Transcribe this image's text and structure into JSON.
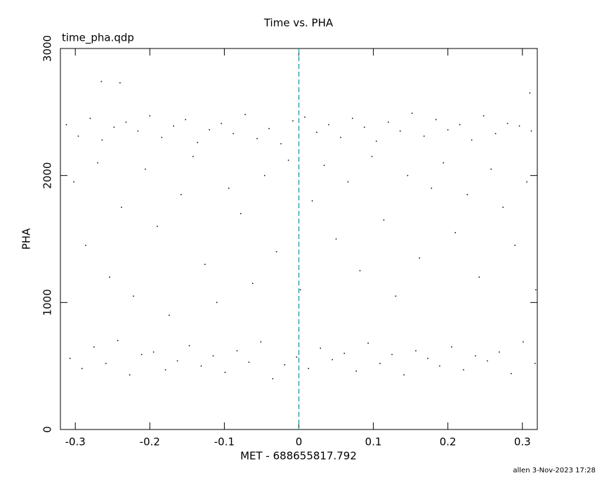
{
  "chart_data": {
    "type": "scatter",
    "title": "Time vs. PHA",
    "subtitle": "time_pha.qdp",
    "x_label": "MET - 688655817.792",
    "y_label": "PHA",
    "footer": "allen  3-Nov-2023 17:28",
    "color": "#000000",
    "vline": 0,
    "vline_color": "#1a9aa0",
    "xlim": [
      -0.32,
      0.32
    ],
    "ylim": [
      0,
      3000
    ],
    "xticks": [
      -0.3,
      -0.2,
      -0.1,
      0,
      0.1,
      0.2,
      0.3
    ],
    "yticks": [
      0,
      1000,
      2000,
      3000
    ],
    "x": [
      -0.312,
      -0.296,
      -0.28,
      -0.264,
      -0.248,
      -0.232,
      -0.216,
      -0.2,
      -0.184,
      -0.168,
      -0.152,
      -0.136,
      -0.12,
      -0.104,
      -0.088,
      -0.072,
      -0.056,
      -0.04,
      -0.024,
      -0.008,
      0.008,
      0.024,
      0.04,
      0.056,
      0.072,
      0.088,
      0.104,
      0.12,
      0.136,
      0.152,
      0.168,
      0.184,
      0.2,
      0.216,
      0.232,
      0.248,
      0.264,
      0.28,
      0.296,
      0.312,
      -0.307,
      -0.291,
      -0.275,
      -0.259,
      -0.243,
      -0.227,
      -0.211,
      -0.195,
      -0.179,
      -0.163,
      -0.147,
      -0.131,
      -0.115,
      -0.099,
      -0.083,
      -0.067,
      -0.051,
      -0.035,
      -0.019,
      -0.003,
      0.013,
      0.029,
      0.045,
      0.061,
      0.077,
      0.093,
      0.109,
      0.125,
      0.141,
      0.157,
      0.173,
      0.189,
      0.205,
      0.221,
      0.237,
      0.253,
      0.269,
      0.285,
      0.301,
      0.317,
      -0.302,
      -0.286,
      -0.27,
      -0.254,
      -0.238,
      -0.222,
      -0.206,
      -0.19,
      -0.174,
      -0.158,
      -0.142,
      -0.126,
      -0.11,
      -0.094,
      -0.078,
      -0.062,
      -0.046,
      -0.03,
      -0.014,
      0.002,
      0.018,
      0.034,
      0.05,
      0.066,
      0.082,
      0.098,
      0.114,
      0.13,
      0.146,
      0.162,
      0.178,
      0.194,
      0.21,
      0.226,
      0.242,
      0.258,
      0.274,
      0.29,
      0.306,
      0.318,
      -0.265,
      -0.24,
      0.31
    ],
    "y": [
      2400,
      2310,
      2450,
      2280,
      2380,
      2420,
      2350,
      2470,
      2300,
      2390,
      2440,
      2260,
      2360,
      2410,
      2330,
      2480,
      2290,
      2370,
      2250,
      2430,
      2460,
      2340,
      2400,
      2300,
      2450,
      2380,
      2270,
      2420,
      2350,
      2490,
      2310,
      2440,
      2360,
      2400,
      2280,
      2470,
      2330,
      2410,
      2390,
      2350,
      560,
      480,
      650,
      520,
      700,
      430,
      590,
      610,
      470,
      540,
      660,
      500,
      580,
      450,
      620,
      530,
      690,
      400,
      510,
      570,
      480,
      640,
      550,
      600,
      460,
      680,
      520,
      590,
      430,
      620,
      560,
      500,
      650,
      470,
      580,
      540,
      610,
      440,
      690,
      520,
      1950,
      1450,
      2100,
      1200,
      1750,
      1050,
      2050,
      1600,
      900,
      1850,
      2150,
      1300,
      1000,
      1900,
      1700,
      1150,
      2000,
      1400,
      2120,
      1100,
      1800,
      2080,
      1500,
      1950,
      1250,
      2150,
      1650,
      1050,
      2000,
      1350,
      1900,
      2100,
      1550,
      1850,
      1200,
      2050,
      1750,
      1450,
      1950,
      1100,
      2740,
      2730,
      2650
    ]
  }
}
